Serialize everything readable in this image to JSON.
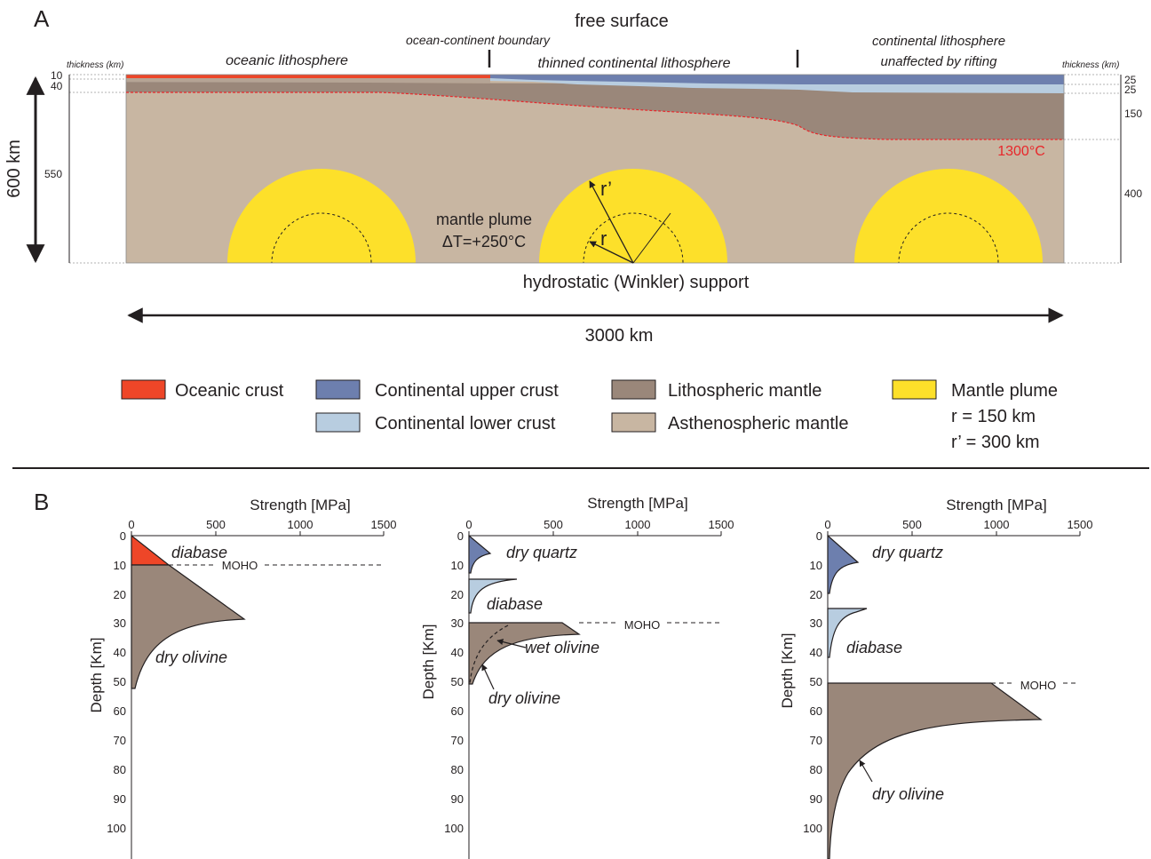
{
  "panel_a": {
    "label": "A",
    "top_title": "free surface",
    "bottom_label": "hydrostatic (Winkler) support",
    "width_label": "3000 km",
    "depth_label": "600 km",
    "left_thickness_header": "thickness (km)",
    "right_thickness_header": "thickness (km)",
    "left_ticks": [
      "10",
      "40",
      "550"
    ],
    "right_ticks": [
      "25",
      "25",
      "150",
      "400"
    ],
    "region_oceanic": "oceanic lithosphere",
    "region_boundary": "ocean-continent boundary",
    "region_thinned": "thinned continental lithosphere",
    "region_unaffected_1": "continental lithosphere",
    "region_unaffected_2": "unaffected by rifting",
    "isotherm_label": "1300°C",
    "plume_label_1": "mantle plume",
    "plume_label_2": "ΔT=+250°C",
    "r_label": "r",
    "r_prime_label": "r’"
  },
  "legend": [
    {
      "label": "Oceanic crust",
      "color": "#ee4628"
    },
    {
      "label": "Continental upper crust",
      "color": "#6d7fae"
    },
    {
      "label": "Continental lower crust",
      "color": "#b8cde0"
    },
    {
      "label": "Lithospheric mantle",
      "color": "#9a877a"
    },
    {
      "label": "Asthenospheric mantle",
      "color": "#c8b6a2"
    },
    {
      "label": "Mantle plume",
      "color": "#fde02a"
    }
  ],
  "legend_plume_r": "r = 150 km",
  "legend_plume_r_prime": "r’ = 300 km",
  "panel_b": {
    "label": "B",
    "strength_title": "Strength [MPa]",
    "depth_title": "Depth  [Km]",
    "x_ticks": [
      "0",
      "500",
      "1000",
      "1500"
    ],
    "y_ticks": [
      "0",
      "10",
      "20",
      "30",
      "40",
      "50",
      "60",
      "70",
      "80",
      "90",
      "100"
    ],
    "moho_label": "MOHO",
    "profile_1": {
      "diabase": "diabase",
      "dry_olivine": "dry olivine"
    },
    "profile_2": {
      "dry_quartz": "dry quartz",
      "diabase": "diabase",
      "wet_olivine": "wet olivine",
      "dry_olivine": "dry olivine"
    },
    "profile_3": {
      "dry_quartz": "dry quartz",
      "diabase": "diabase",
      "dry_olivine": "dry olivine"
    }
  },
  "colors": {
    "oceanic_crust": "#ee4628",
    "upper_crust": "#6d7fae",
    "lower_crust": "#b8cde0",
    "lith_mantle": "#9a877a",
    "asth_mantle": "#c8b6a2",
    "plume": "#fde02a",
    "isotherm": "#e8262a"
  }
}
